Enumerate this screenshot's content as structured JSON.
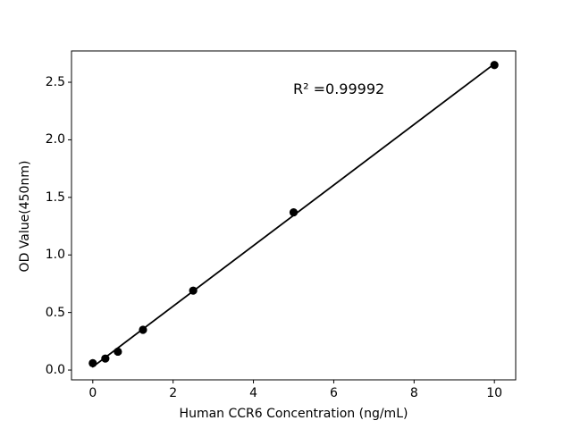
{
  "chart_data": {
    "type": "scatter",
    "title": "",
    "xlabel": "Human CCR6 Concentration (ng/mL)",
    "ylabel": "OD Value(450nm)",
    "annotation": "R² =0.99992",
    "r_squared": 0.99992,
    "x": [
      0,
      0.3125,
      0.625,
      1.25,
      2.5,
      5,
      10
    ],
    "y": [
      0.06,
      0.1,
      0.16,
      0.35,
      0.69,
      1.37,
      2.65
    ],
    "fit_line": {
      "x": [
        0,
        10
      ],
      "y": [
        0.028,
        2.66
      ]
    },
    "xticks": [
      0,
      2,
      4,
      6,
      8,
      10
    ],
    "xtick_labels": [
      "0",
      "2",
      "4",
      "6",
      "8",
      "10"
    ],
    "ytick_values": [
      0.0,
      0.5,
      1.0,
      1.5,
      2.0,
      2.5
    ],
    "ytick_labels": [
      "0.0",
      "0.5",
      "1.0",
      "1.5",
      "2.0",
      "2.5"
    ],
    "xlim": [
      -0.53,
      10.53
    ],
    "ylim": [
      -0.085,
      2.772
    ],
    "grid": false,
    "legend": "none",
    "marker_color": "#000000",
    "line_color": "#000000",
    "axis_color": "#000000",
    "background_color": "#ffffff"
  }
}
